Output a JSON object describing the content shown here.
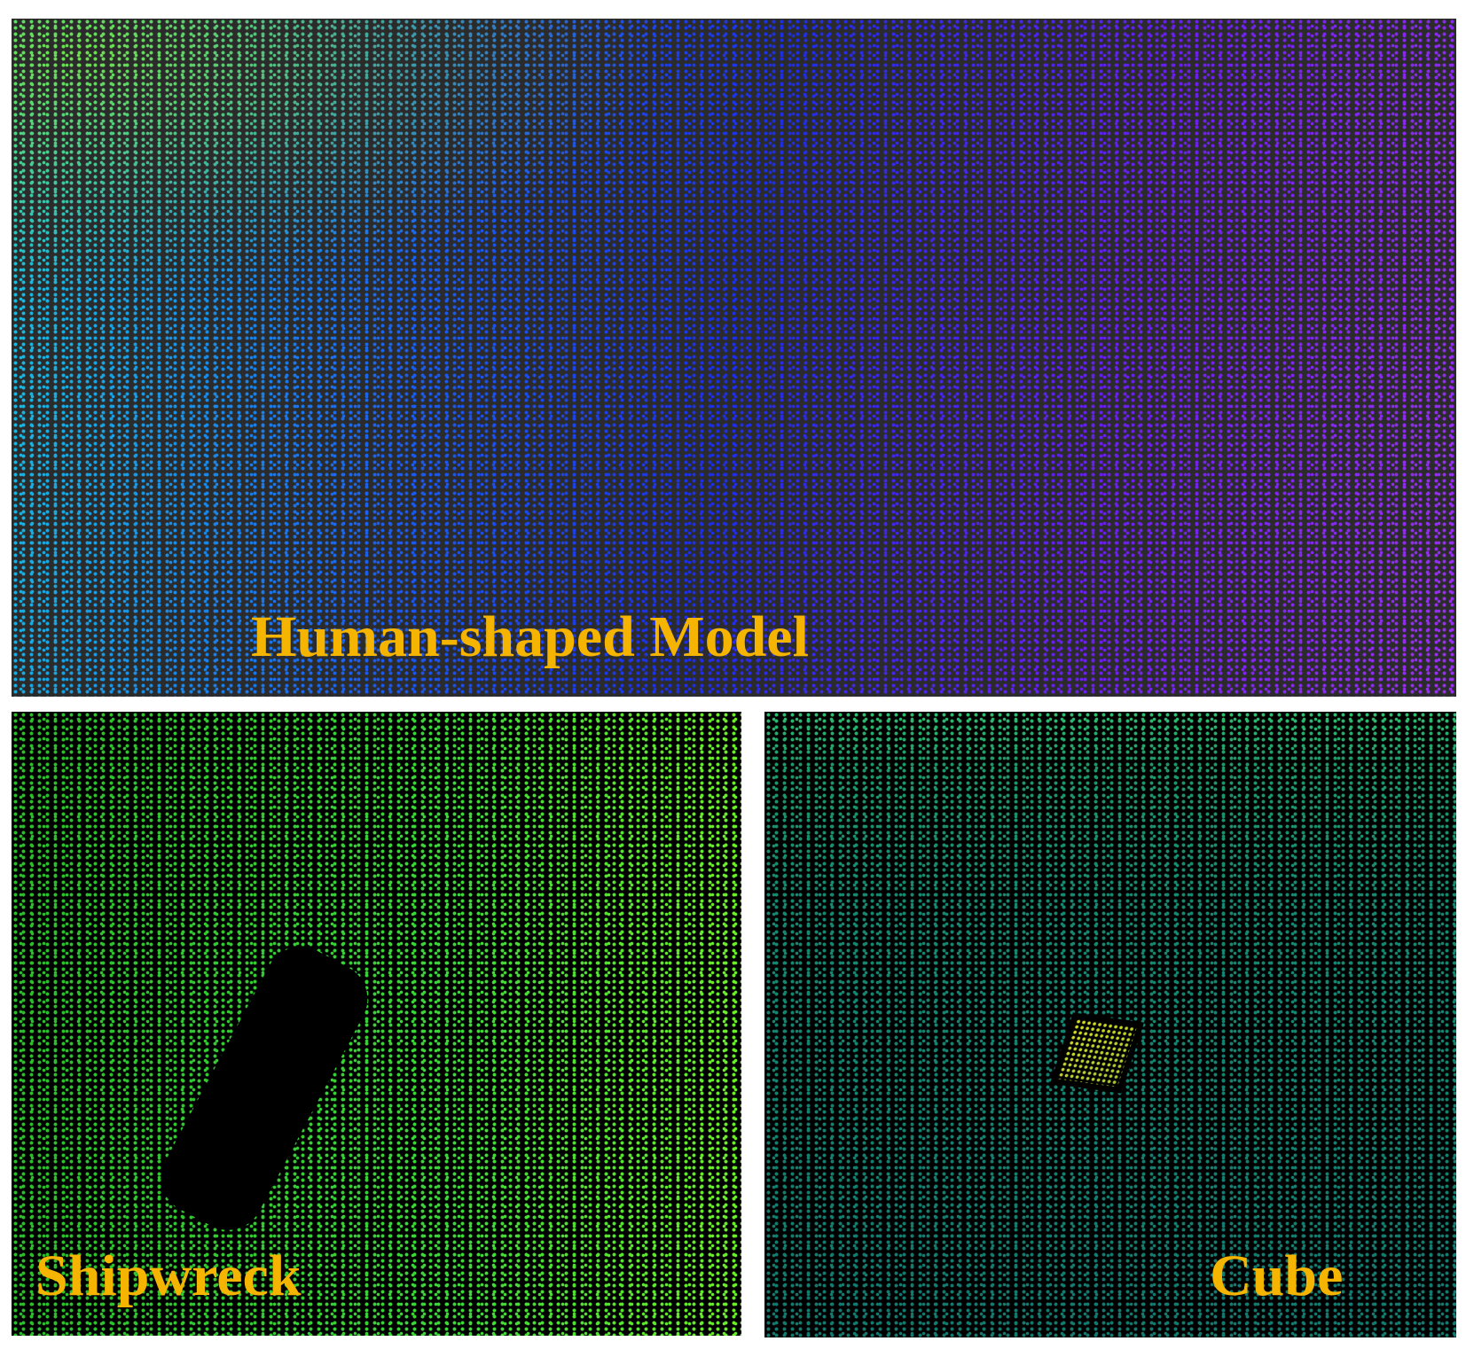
{
  "panels": [
    {
      "label": "Human-shaped Model"
    },
    {
      "label": "Shipwreck"
    },
    {
      "label": "Cube"
    }
  ]
}
